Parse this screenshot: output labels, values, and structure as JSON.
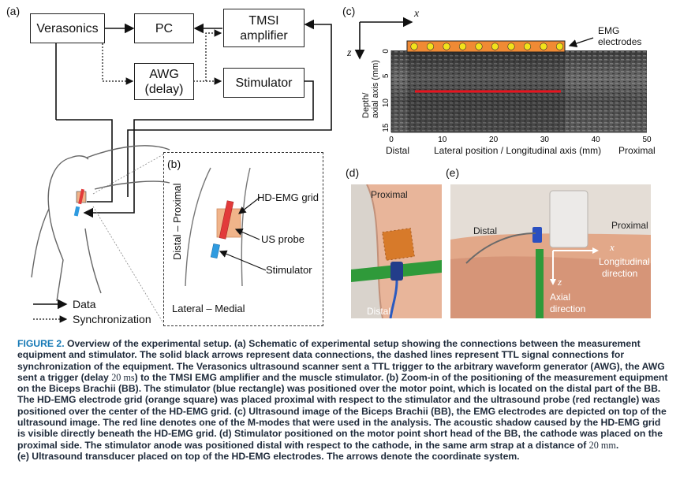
{
  "panel_a": {
    "letter": "(a)",
    "boxes": {
      "verasonics": "Verasonics",
      "pc": "PC",
      "tmsi_line1": "TMSI",
      "tmsi_line2": "amplifier",
      "awg_line1": "AWG",
      "awg_line2": "(delay)",
      "stimulator": "Stimulator"
    },
    "legend": {
      "data": "Data",
      "sync": "Synchronization"
    }
  },
  "panel_b": {
    "letter": "(b)",
    "axis_vertical": "Distal – Proximal",
    "axis_horizontal": "Lateral – Medial",
    "labels": {
      "grid": "HD-EMG grid",
      "probe": "US probe",
      "stimulator": "Stimulator"
    }
  },
  "panel_c": {
    "letter": "(c)",
    "x_symbol": "x",
    "z_symbol": "z",
    "electrodes_line1": "EMG",
    "electrodes_line2": "electrodes",
    "ylabel_line1": "Depth/",
    "ylabel_line2": "axial axis (mm)",
    "xlabel": "Lateral position / Longitudinal axis (mm)",
    "left_end": "Distal",
    "right_end": "Proximal",
    "y_ticks": [
      "0",
      "5",
      "10",
      "15"
    ],
    "x_ticks": [
      "0",
      "10",
      "20",
      "30",
      "40",
      "50"
    ]
  },
  "panel_d": {
    "letter": "(d)",
    "top_label": "Proximal",
    "bottom_label": "Distal"
  },
  "panel_e": {
    "letter": "(e)",
    "distal": "Distal",
    "proximal": "Proximal",
    "x_symbol": "x",
    "longitudinal_line1": "Longitudinal",
    "longitudinal_line2": "direction",
    "z_symbol": "z",
    "axial_line1": "Axial",
    "axial_line2": "direction"
  },
  "caption": {
    "figure_label": "FIGURE 2.",
    "part1": " Overview of the experimental setup. (a) Schematic of experimental setup showing the connections between the measurement equipment and stimulator. The solid black arrows represent data connections, the dashed lines represent TTL signal connections for synchronization of the equipment. The Verasonics ultrasound scanner sent a TTL trigger to the arbitrary waveform generator (AWG), the AWG sent a trigger (delay ",
    "delay": "20 ms",
    "part2": ") to the TMSI EMG amplifier and the muscle stimulator. (b) Zoom-in of the positioning of the measurement equipment on the Biceps Brachii (BB). The stimulator (blue rectangle) was positioned over the motor point, which is located on the distal part of the BB. The HD-EMG electrode grid (orange square) was placed proximal with respect to the stimulator and the ultrasound probe (red rectangle) was positioned over the center of the HD-EMG grid. (c) Ultrasound image of the Biceps Brachii (BB), the EMG electrodes are depicted on top of the ultrasound image. The red line denotes one of the M-modes that were used in the analysis. The acoustic shadow caused by the HD-EMG grid is visible directly beneath the HD-EMG grid. (d) Stimulator positioned on the motor point short head of the BB, the cathode was placed on the proximal side. The stimulator anode was positioned distal with respect to the cathode, in the same arm strap at a distance of ",
    "distance": "20 mm",
    "part3": ".",
    "part4": "(e) Ultrasound transducer placed on top of the HD-EMG electrodes. The arrows denote the coordinate system."
  },
  "colors": {
    "caption_text": "#1e2a3a",
    "caption_accent": "#1478b5",
    "grid_orange": "#f0b48a",
    "probe_red": "#e23a3a",
    "stim_blue": "#2f9be0",
    "m_mode_red": "#e8141e",
    "electrode_yellow": "#f2e21a"
  }
}
